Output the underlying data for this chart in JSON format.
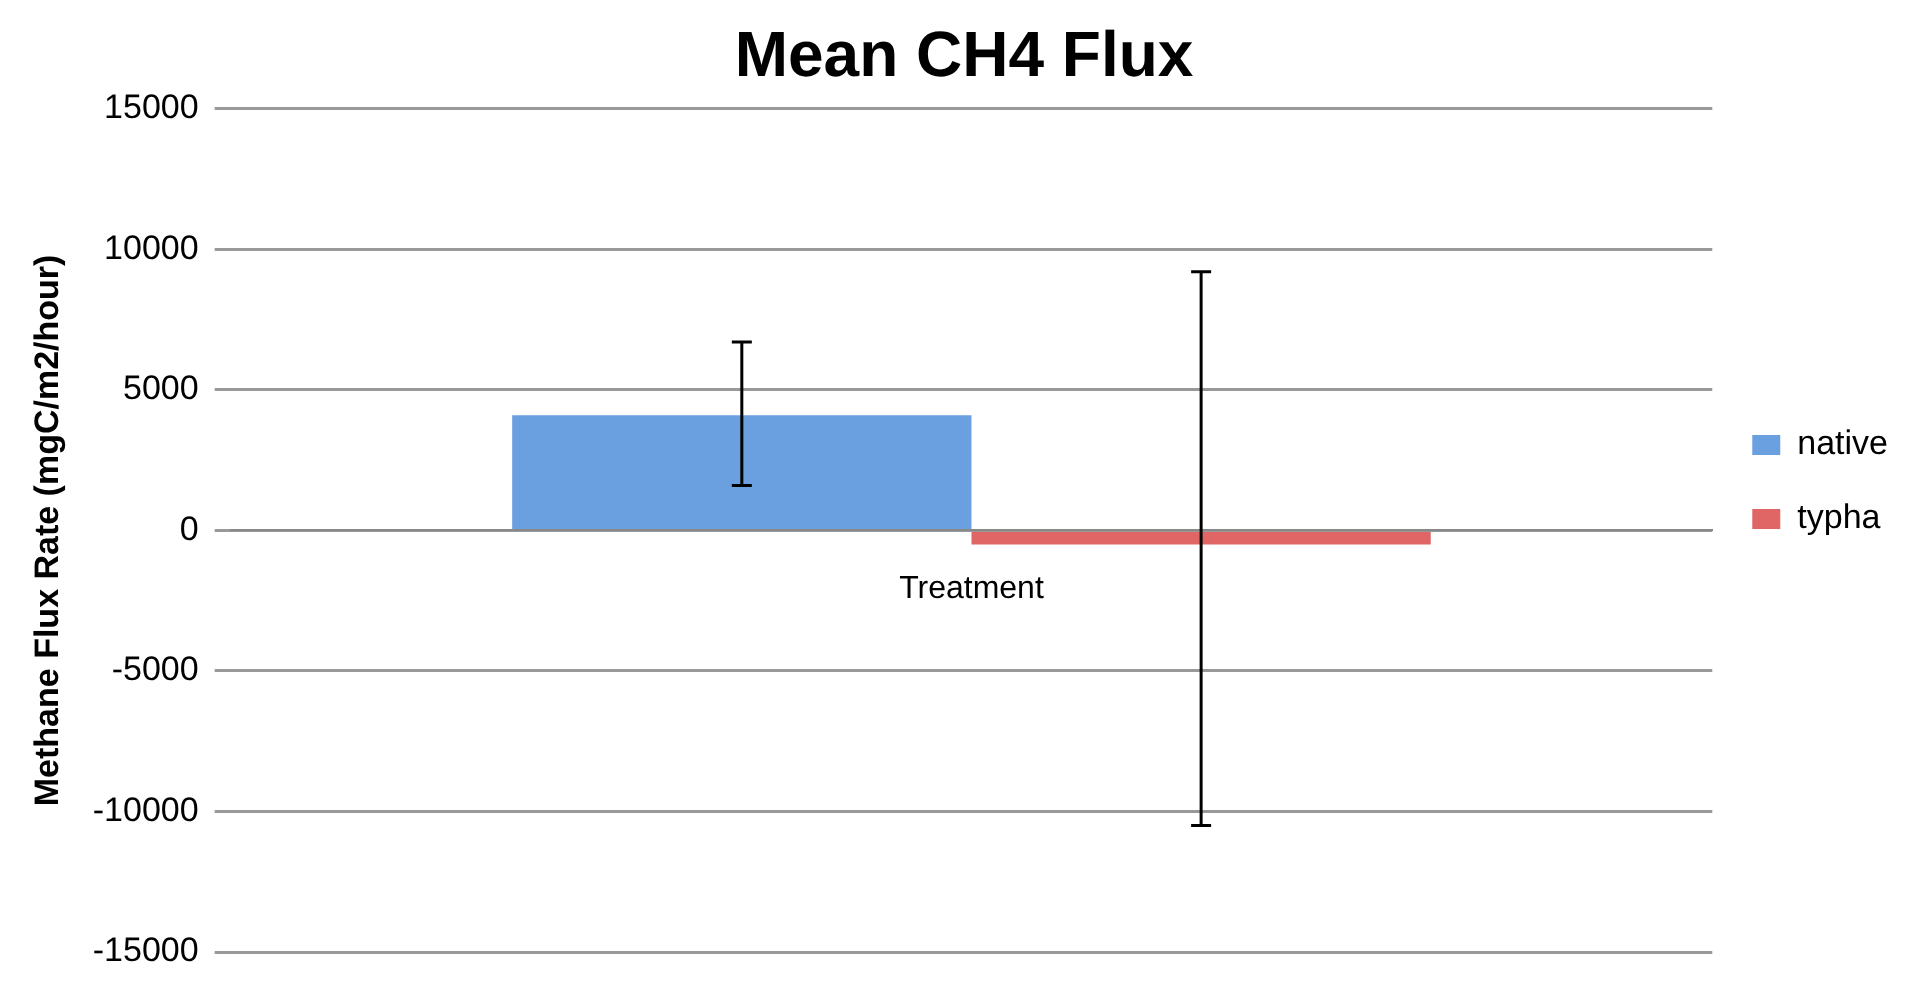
{
  "chart_data": {
    "type": "bar",
    "title": "Mean CH4 Flux",
    "ylabel": "Methane Flux Rate (mgC/m2/hour)",
    "categories": [
      "Treatment"
    ],
    "series": [
      {
        "name": "native",
        "color": "#6a9fe0",
        "values": [
          4100
        ],
        "errors": [
          [
            1600,
            6700
          ]
        ]
      },
      {
        "name": "typha",
        "color": "#e06666",
        "values": [
          -500
        ],
        "errors": [
          [
            -10500,
            9200
          ]
        ]
      }
    ],
    "ylim": [
      -15000,
      15000
    ],
    "yticks": [
      -15000,
      -10000,
      -5000,
      0,
      5000,
      10000,
      15000
    ],
    "grid": "y",
    "legend": "right"
  }
}
